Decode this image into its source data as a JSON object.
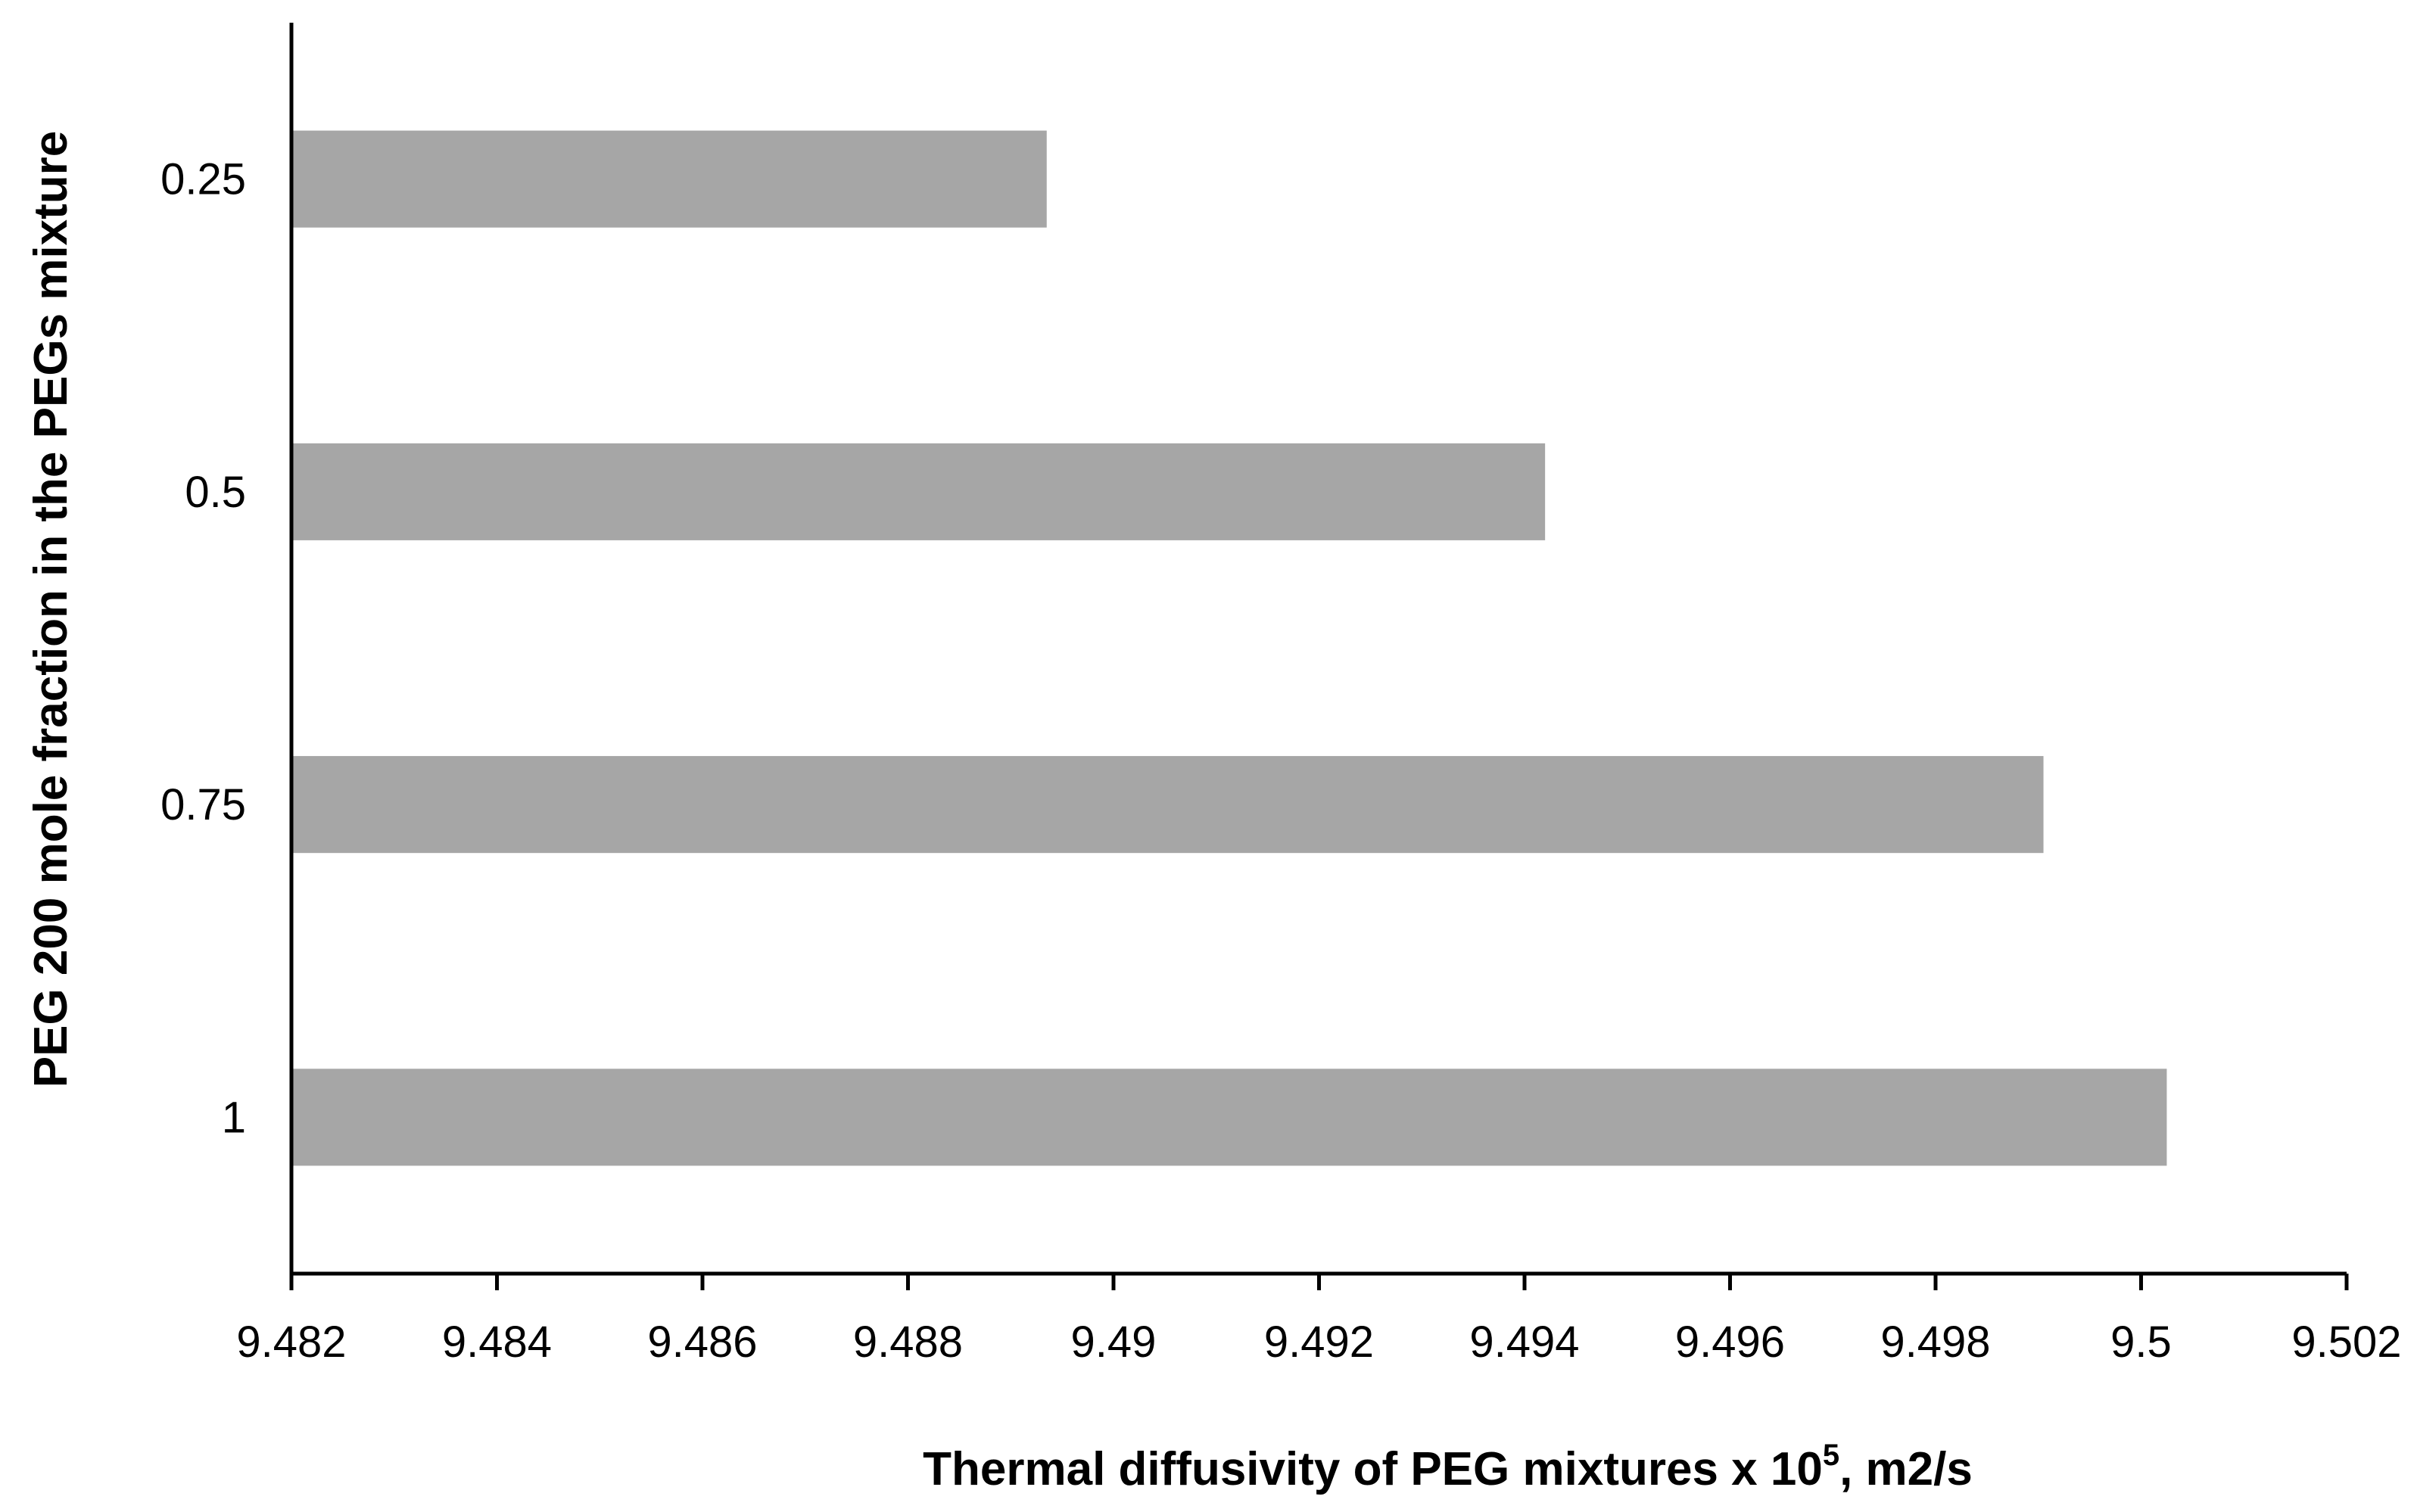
{
  "chart_data": {
    "type": "bar",
    "orientation": "horizontal",
    "categories": [
      "1",
      "0.75",
      "0.5",
      "0.25"
    ],
    "values": [
      9.50025,
      9.49905,
      9.4942,
      9.48935
    ],
    "xlim": [
      9.482,
      9.502
    ],
    "x_ticks": [
      "9.482",
      "9.484",
      "9.486",
      "9.488",
      "9.49",
      "9.492",
      "9.494",
      "9.496",
      "9.498",
      "9.5",
      "9.502"
    ],
    "xlabel": "Thermal diffusivity of PEG mixtures x 10",
    "xlabel_sup": "5",
    "xlabel_tail": ", m2/s",
    "ylabel": "PEG 200 mole fraction in the PEGs mixture",
    "grid": false,
    "legend": "none",
    "bar_color": "#a6a6a6",
    "axis_color": "#000000"
  }
}
